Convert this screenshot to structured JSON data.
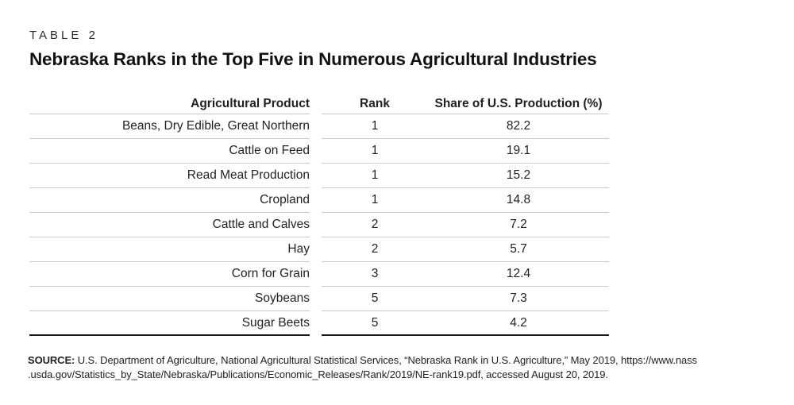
{
  "page": {
    "kicker": "TABLE 2",
    "title": "Nebraska Ranks in the Top Five in Numerous Agricultural Industries"
  },
  "table": {
    "headers": {
      "product": "Agricultural Product",
      "rank": "Rank",
      "share": "Share of U.S. Production (%)"
    },
    "rows": [
      {
        "product": "Beans, Dry Edible, Great Northern",
        "rank": "1",
        "share": "82.2"
      },
      {
        "product": "Cattle on Feed",
        "rank": "1",
        "share": "19.1"
      },
      {
        "product": "Read Meat Production",
        "rank": "1",
        "share": "15.2"
      },
      {
        "product": "Cropland",
        "rank": "1",
        "share": "14.8"
      },
      {
        "product": "Cattle and Calves",
        "rank": "2",
        "share": "7.2"
      },
      {
        "product": "Hay",
        "rank": "2",
        "share": "5.7"
      },
      {
        "product": "Corn for Grain",
        "rank": "3",
        "share": "12.4"
      },
      {
        "product": "Soybeans",
        "rank": "5",
        "share": "7.3"
      },
      {
        "product": "Sugar Beets",
        "rank": "5",
        "share": "4.2"
      }
    ]
  },
  "source": {
    "label": "SOURCE:",
    "line1": " U.S. Department of Agriculture, National Agricultural Statistical Services, “Nebraska Rank in U.S. Agriculture,” May 2019, https://www.nass",
    "line2": ".usda.gov/Statistics_by_State/Nebraska/Publications/Economic_Releases/Rank/2019/NE-rank19.pdf, accessed August 20, 2019."
  },
  "colors": {
    "background": "#ffffff",
    "text": "#231f20",
    "row_rule": "#c9c9c9",
    "bottom_rule": "#1c1c1c"
  },
  "chart_data": {
    "type": "table",
    "table_label": "TABLE 2",
    "title": "Nebraska Ranks in the Top Five in Numerous Agricultural Industries",
    "columns": [
      "Agricultural Product",
      "Rank",
      "Share of U.S. Production (%)"
    ],
    "rows": [
      [
        "Beans, Dry Edible, Great Northern",
        1,
        82.2
      ],
      [
        "Cattle on Feed",
        1,
        19.1
      ],
      [
        "Read Meat Production",
        1,
        15.2
      ],
      [
        "Cropland",
        1,
        14.8
      ],
      [
        "Cattle and Calves",
        2,
        7.2
      ],
      [
        "Hay",
        2,
        5.7
      ],
      [
        "Corn for Grain",
        3,
        12.4
      ],
      [
        "Soybeans",
        5,
        7.3
      ],
      [
        "Sugar Beets",
        5,
        4.2
      ]
    ],
    "source": "SOURCE: U.S. Department of Agriculture, National Agricultural Statistical Services, “Nebraska Rank in U.S. Agriculture,” May 2019, https://www.nass.usda.gov/Statistics_by_State/Nebraska/Publications/Economic_Releases/Rank/2019/NE-rank19.pdf, accessed August 20, 2019."
  }
}
